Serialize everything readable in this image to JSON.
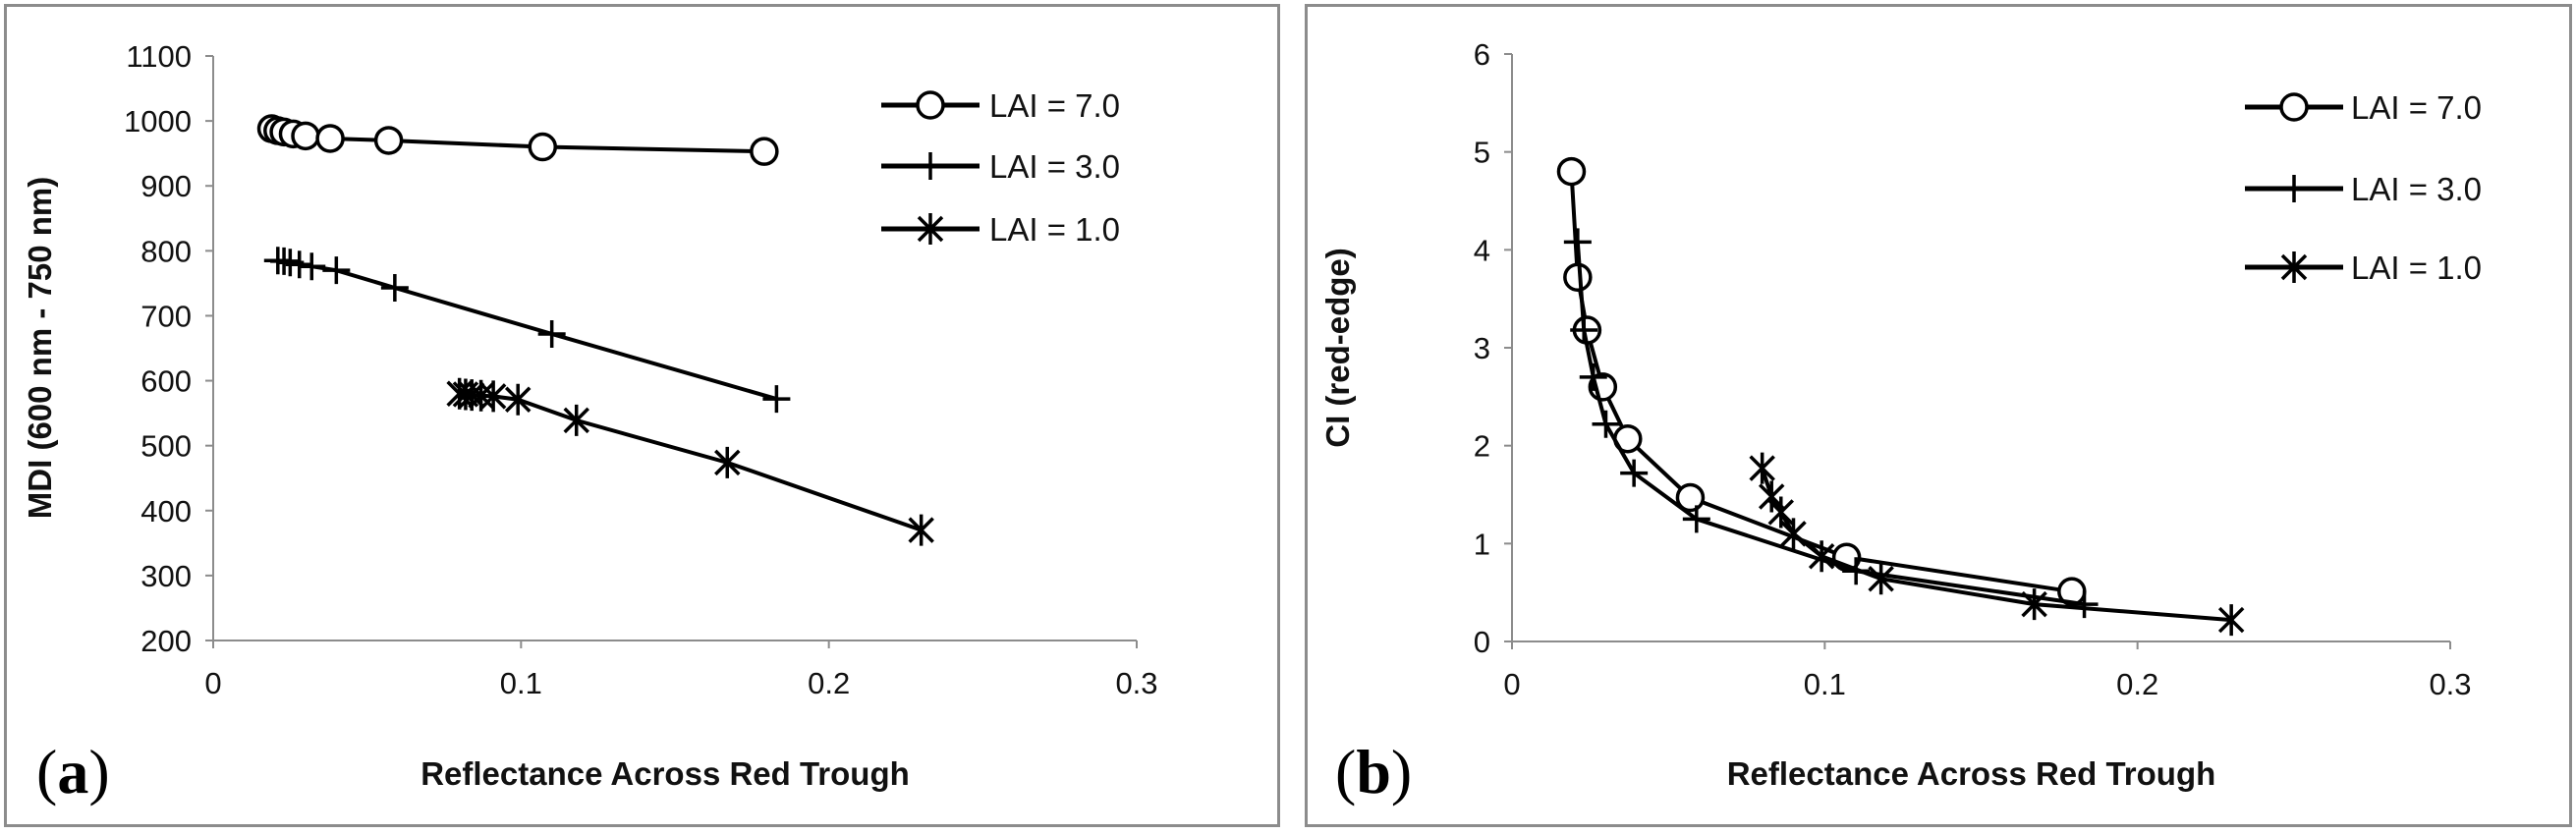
{
  "chart_data": [
    {
      "type": "line",
      "panel_label": "(a)",
      "panel_letter": "a",
      "xlabel": "Reflectance Across Red Trough",
      "ylabel": "MDI (600 nm - 750 nm)",
      "xlim": [
        0,
        0.3
      ],
      "ylim": [
        200,
        1100
      ],
      "xticks": [
        0,
        0.1,
        0.2,
        0.3
      ],
      "xtick_labels": [
        "0",
        "0.1",
        "0.2",
        "0.3"
      ],
      "yticks": [
        200,
        300,
        400,
        500,
        600,
        700,
        800,
        900,
        1000,
        1100
      ],
      "ytick_labels": [
        "200",
        "300",
        "400",
        "500",
        "600",
        "700",
        "800",
        "900",
        "1000",
        "1100"
      ],
      "legend_position": "top-right",
      "series": [
        {
          "name": "LAI = 7.0",
          "marker": "circle",
          "x": [
            0.019,
            0.021,
            0.023,
            0.026,
            0.03,
            0.038,
            0.057,
            0.107,
            0.179
          ],
          "y": [
            988,
            985,
            983,
            980,
            977,
            973,
            970,
            960,
            953
          ]
        },
        {
          "name": "LAI = 3.0",
          "marker": "plus",
          "x": [
            0.021,
            0.023,
            0.025,
            0.028,
            0.032,
            0.04,
            0.059,
            0.11,
            0.183
          ],
          "y": [
            785,
            784,
            782,
            779,
            776,
            770,
            743,
            672,
            572
          ]
        },
        {
          "name": "LAI = 1.0",
          "marker": "asterisk",
          "x": [
            0.08,
            0.082,
            0.084,
            0.087,
            0.091,
            0.099,
            0.118,
            0.167,
            0.23
          ],
          "y": [
            580,
            579,
            578,
            577,
            576,
            571,
            539,
            474,
            370
          ]
        }
      ]
    },
    {
      "type": "line",
      "panel_label": "(b)",
      "panel_letter": "b",
      "xlabel": "Reflectance Across Red Trough",
      "ylabel": "CI (red-edge)",
      "xlim": [
        0,
        0.3
      ],
      "ylim": [
        0,
        6
      ],
      "xticks": [
        0,
        0.1,
        0.2,
        0.3
      ],
      "xtick_labels": [
        "0",
        "0.1",
        "0.2",
        "0.3"
      ],
      "yticks": [
        0,
        1,
        2,
        3,
        4,
        5,
        6
      ],
      "ytick_labels": [
        "0",
        "1",
        "2",
        "3",
        "4",
        "5",
        "6"
      ],
      "legend_position": "top-right",
      "series": [
        {
          "name": "LAI = 7.0",
          "marker": "circle",
          "x": [
            0.019,
            0.021,
            0.024,
            0.029,
            0.037,
            0.057,
            0.107,
            0.179
          ],
          "y": [
            4.8,
            3.72,
            3.18,
            2.6,
            2.07,
            1.47,
            0.86,
            0.51
          ]
        },
        {
          "name": "LAI = 3.0",
          "marker": "plus",
          "x": [
            0.021,
            0.023,
            0.026,
            0.03,
            0.039,
            0.059,
            0.11,
            0.183
          ],
          "y": [
            4.08,
            3.18,
            2.7,
            2.22,
            1.72,
            1.25,
            0.72,
            0.38
          ]
        },
        {
          "name": "LAI = 1.0",
          "marker": "asterisk",
          "x": [
            0.08,
            0.083,
            0.086,
            0.09,
            0.099,
            0.118,
            0.167,
            0.23
          ],
          "y": [
            1.77,
            1.48,
            1.32,
            1.1,
            0.87,
            0.64,
            0.38,
            0.22
          ]
        }
      ]
    }
  ]
}
